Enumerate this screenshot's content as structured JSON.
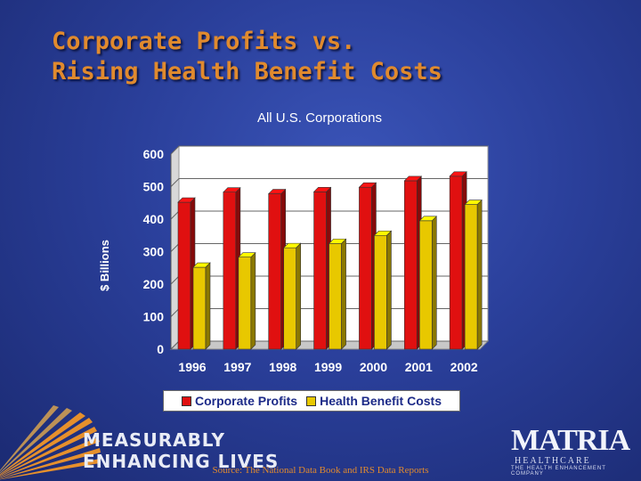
{
  "slide": {
    "title_line1": "Corporate Profits vs.",
    "title_line2": "Rising Health Benefit Costs",
    "tagline_line1": "MEASURABLY",
    "tagline_line2": "ENHANCING LIVES",
    "source": "Source: The National Data Book and IRS Data Reports",
    "logo_name": "MATRIA",
    "logo_sub": "HEALTHCARE",
    "logo_tag": "THE HEALTH ENHANCEMENT COMPANY"
  },
  "colors": {
    "title": "#e08a2e",
    "profits": "#e01010",
    "health": "#e8c800",
    "axis_text": "#ffffff",
    "tick_text": "#ffffff"
  },
  "chart_data": {
    "type": "bar",
    "title": "All U.S. Corporations",
    "xlabel": "",
    "ylabel": "$ Billions",
    "ylim": [
      0,
      600
    ],
    "yticks": [
      0,
      100,
      200,
      300,
      400,
      500,
      600
    ],
    "categories": [
      "1996",
      "1997",
      "1998",
      "1999",
      "2000",
      "2001",
      "2002"
    ],
    "series": [
      {
        "name": "Corporate Profits",
        "values": [
          452,
          483,
          478,
          484,
          498,
          518,
          532
        ]
      },
      {
        "name": "Health Benefit Costs",
        "values": [
          252,
          283,
          312,
          325,
          350,
          395,
          445
        ]
      }
    ],
    "grid": true,
    "legend": "bottom"
  }
}
